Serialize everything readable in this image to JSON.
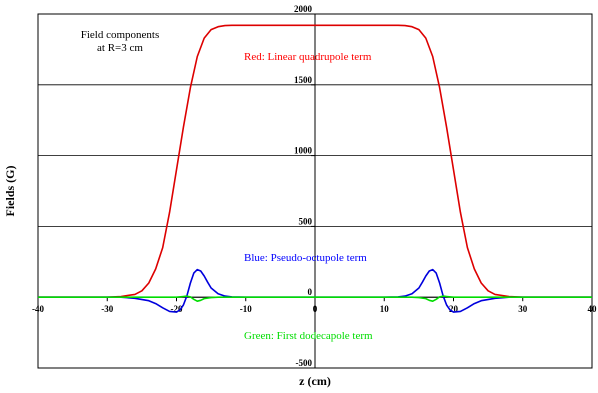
{
  "chart_data": {
    "type": "line",
    "title": "",
    "xlabel": "z (cm)",
    "ylabel": "Fields (G)",
    "xlim": [
      -40,
      40
    ],
    "ylim": [
      -500,
      2000
    ],
    "xticks": [
      -40,
      -30,
      -20,
      -10,
      0,
      10,
      20,
      30,
      40
    ],
    "xtick_labels": [
      "-40",
      "-30",
      "-20",
      "-10",
      "0",
      "10",
      "20",
      "30",
      "40"
    ],
    "yticks": [
      -500,
      0,
      500,
      1000,
      1500,
      2000
    ],
    "ytick_labels": [
      "-500",
      "0",
      "500",
      "1000",
      "1500",
      "2000"
    ],
    "grid": "horizontal",
    "annotations": [
      {
        "text": "Field components",
        "color": "#000000"
      },
      {
        "text": "at R=3 cm",
        "color": "#000000"
      },
      {
        "text": "Red:  Linear quadrupole term",
        "color": "#ff0000"
      },
      {
        "text": "Blue:  Pseudo-octupole term",
        "color": "#0000ff"
      },
      {
        "text": "Green:  First dodecapole term",
        "color": "#00dd00"
      }
    ],
    "series": [
      {
        "color": "#dd0000",
        "x": [
          -40,
          -30,
          -28,
          -26,
          -25,
          -24,
          -23,
          -22,
          -21,
          -20,
          -19,
          -18,
          -17,
          -16,
          -15,
          -14,
          -13,
          -12,
          -10,
          -5,
          0,
          5,
          10,
          12,
          13,
          14,
          15,
          16,
          17,
          18,
          19,
          20,
          21,
          22,
          23,
          24,
          25,
          26,
          28,
          30,
          40
        ],
        "y": [
          0,
          0,
          5,
          20,
          45,
          100,
          200,
          350,
          600,
          900,
          1200,
          1480,
          1700,
          1830,
          1890,
          1910,
          1918,
          1920,
          1920,
          1920,
          1920,
          1920,
          1920,
          1920,
          1918,
          1910,
          1890,
          1830,
          1700,
          1480,
          1200,
          900,
          600,
          350,
          200,
          100,
          45,
          20,
          5,
          0,
          0
        ]
      },
      {
        "color": "#0000dd",
        "x": [
          -40,
          -28,
          -26,
          -24,
          -23,
          -22,
          -21,
          -20,
          -19.5,
          -19,
          -18.5,
          -18,
          -17.5,
          -17,
          -16.5,
          -16,
          -15.5,
          -15,
          -14,
          -13,
          -12,
          -10,
          0,
          10,
          12,
          13,
          14,
          15,
          15.5,
          16,
          16.5,
          17,
          17.5,
          18,
          18.5,
          19,
          19.5,
          20,
          21,
          22,
          23,
          24,
          26,
          28,
          40
        ],
        "y": [
          0,
          0,
          -8,
          -25,
          -45,
          -75,
          -100,
          -105,
          -90,
          -55,
          10,
          100,
          170,
          195,
          185,
          150,
          105,
          65,
          25,
          8,
          2,
          0,
          0,
          0,
          2,
          8,
          25,
          65,
          105,
          150,
          185,
          195,
          170,
          100,
          10,
          -55,
          -90,
          -105,
          -100,
          -75,
          -45,
          -25,
          -8,
          0,
          0
        ]
      },
      {
        "color": "#00dd00",
        "x": [
          -40,
          -20,
          -19,
          -18.5,
          -18,
          -17.5,
          -17,
          -16.5,
          -16,
          -15,
          -14,
          0,
          14,
          15,
          16,
          16.5,
          17,
          17.5,
          18,
          18.5,
          19,
          20,
          40
        ],
        "y": [
          0,
          0,
          5,
          8,
          2,
          -15,
          -28,
          -22,
          -10,
          -3,
          0,
          0,
          0,
          -3,
          -10,
          -22,
          -28,
          -15,
          2,
          8,
          5,
          0,
          0
        ]
      }
    ]
  }
}
